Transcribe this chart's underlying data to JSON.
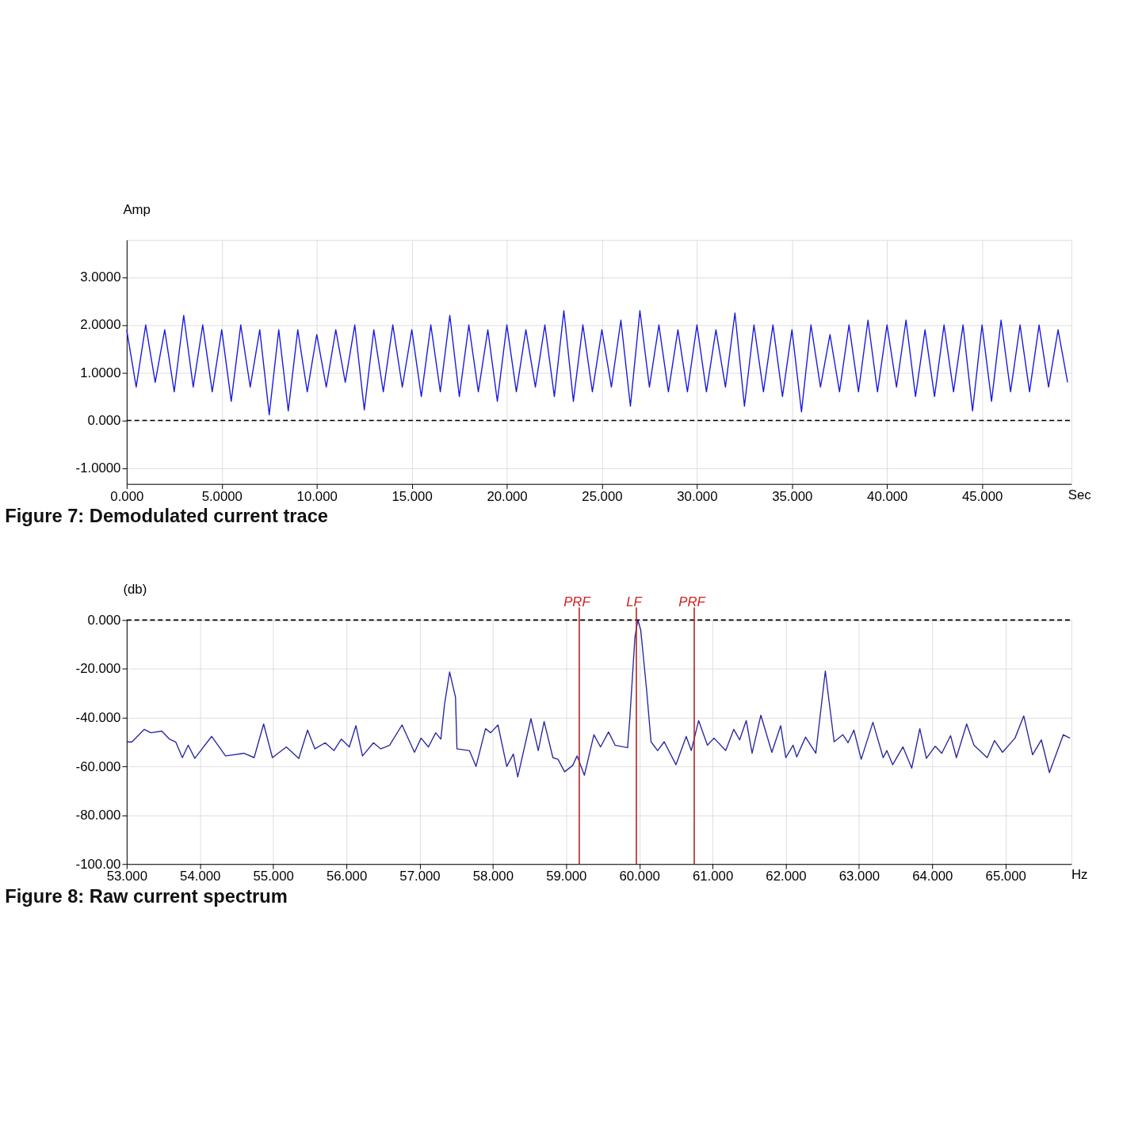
{
  "chart_data": [
    {
      "type": "line",
      "title": "Figure 7: Demodulated current trace",
      "xlabel": "Sec",
      "ylabel": "Amp",
      "grid": true,
      "marker": "none",
      "line_style": "solid",
      "xlim": [
        0,
        49.7
      ],
      "ylim": [
        -1.33,
        3.78
      ],
      "xticks": [
        {
          "value": 0,
          "label": "0.000"
        },
        {
          "value": 5,
          "label": "5.0000"
        },
        {
          "value": 10,
          "label": "10.000"
        },
        {
          "value": 15,
          "label": "15.000"
        },
        {
          "value": 20,
          "label": "20.000"
        },
        {
          "value": 25,
          "label": "25.000"
        },
        {
          "value": 30,
          "label": "30.000"
        },
        {
          "value": 35,
          "label": "35.000"
        },
        {
          "value": 40,
          "label": "40.000"
        },
        {
          "value": 45,
          "label": "45.000"
        }
      ],
      "yticks": [
        {
          "value": -1,
          "label": "-1.0000"
        },
        {
          "value": 0,
          "label": "0.000"
        },
        {
          "value": 1,
          "label": "1.0000"
        },
        {
          "value": 2,
          "label": "2.0000"
        },
        {
          "value": 3,
          "label": "3.0000"
        }
      ],
      "ref_lines": [
        {
          "axis": "y",
          "value": 0,
          "color": "#000000",
          "line_style": "dashed"
        }
      ],
      "series": [
        {
          "color": "#1a1ae0",
          "x": [
            0,
            0.5,
            1,
            1.5,
            2,
            2.5,
            3,
            3.5,
            4,
            4.5,
            5,
            5.5,
            6,
            6.5,
            7,
            7.5,
            8,
            8.5,
            9,
            9.5,
            10,
            10.5,
            11,
            11.5,
            12,
            12.5,
            13,
            13.5,
            14,
            14.5,
            15,
            15.5,
            16,
            16.5,
            17,
            17.5,
            18,
            18.5,
            19,
            19.5,
            20,
            20.5,
            21,
            21.5,
            22,
            22.5,
            23,
            23.5,
            24,
            24.5,
            25,
            25.5,
            26,
            26.5,
            27,
            27.5,
            28,
            28.5,
            29,
            29.5,
            30,
            30.5,
            31,
            31.5,
            32,
            32.5,
            33,
            33.5,
            34,
            34.5,
            35,
            35.5,
            36,
            36.5,
            37,
            37.5,
            38,
            38.5,
            39,
            39.5,
            40,
            40.5,
            41,
            41.5,
            42,
            42.5,
            43,
            43.5,
            44,
            44.5,
            45,
            45.5,
            46,
            46.5,
            47,
            47.5,
            48,
            48.5,
            49,
            49.5
          ],
          "values": [
            1.9,
            0.7,
            2.0,
            0.8,
            1.9,
            0.6,
            2.2,
            0.7,
            2.0,
            0.6,
            1.9,
            0.4,
            2.0,
            0.7,
            1.9,
            0.12,
            1.9,
            0.2,
            1.9,
            0.6,
            1.8,
            0.7,
            1.9,
            0.8,
            2.0,
            0.22,
            1.9,
            0.6,
            2.0,
            0.7,
            1.9,
            0.5,
            2.0,
            0.6,
            2.2,
            0.5,
            2.0,
            0.6,
            1.9,
            0.4,
            2.0,
            0.6,
            1.9,
            0.7,
            2.0,
            0.5,
            2.3,
            0.4,
            2.0,
            0.6,
            1.9,
            0.7,
            2.1,
            0.3,
            2.3,
            0.7,
            2.0,
            0.6,
            1.9,
            0.6,
            2.0,
            0.6,
            1.9,
            0.7,
            2.25,
            0.3,
            2.0,
            0.6,
            2.0,
            0.5,
            1.9,
            0.18,
            2.0,
            0.7,
            1.8,
            0.6,
            2.0,
            0.6,
            2.1,
            0.6,
            2.0,
            0.7,
            2.1,
            0.5,
            1.9,
            0.5,
            2.0,
            0.6,
            2.0,
            0.2,
            2.0,
            0.4,
            2.1,
            0.6,
            2.0,
            0.6,
            2.0,
            0.7,
            1.9,
            0.8
          ]
        }
      ]
    },
    {
      "type": "line",
      "title": "Figure 8: Raw current spectrum",
      "xlabel": "Hz",
      "ylabel": "(db)",
      "grid": true,
      "marker": "none",
      "line_style": "solid",
      "xlim": [
        53,
        65.9
      ],
      "ylim": [
        -100,
        0
      ],
      "xticks": [
        {
          "value": 53,
          "label": "53.000"
        },
        {
          "value": 54,
          "label": "54.000"
        },
        {
          "value": 55,
          "label": "55.000"
        },
        {
          "value": 56,
          "label": "56.000"
        },
        {
          "value": 57,
          "label": "57.000"
        },
        {
          "value": 58,
          "label": "58.000"
        },
        {
          "value": 59,
          "label": "59.000"
        },
        {
          "value": 60,
          "label": "60.000"
        },
        {
          "value": 61,
          "label": "61.000"
        },
        {
          "value": 62,
          "label": "62.000"
        },
        {
          "value": 63,
          "label": "63.000"
        },
        {
          "value": 64,
          "label": "64.000"
        },
        {
          "value": 65,
          "label": "65.000"
        }
      ],
      "yticks": [
        {
          "value": -100,
          "label": "-100.00"
        },
        {
          "value": -80,
          "label": "-80.000"
        },
        {
          "value": -60,
          "label": "-60.000"
        },
        {
          "value": -40,
          "label": "-40.000"
        },
        {
          "value": -20,
          "label": "-20.000"
        },
        {
          "value": 0,
          "label": "0.000"
        }
      ],
      "ref_lines": [
        {
          "axis": "y",
          "value": 0,
          "color": "#000000",
          "line_style": "dashed"
        },
        {
          "axis": "x",
          "value": 59.18,
          "label": "PRF",
          "color": "#b22222",
          "line_style": "solid"
        },
        {
          "axis": "x",
          "value": 59.96,
          "label": "LF",
          "color": "#b22222",
          "line_style": "solid"
        },
        {
          "axis": "x",
          "value": 60.75,
          "label": "PRF",
          "color": "#b22222",
          "line_style": "solid"
        }
      ],
      "series": [
        {
          "color": "#2a2aa0",
          "x": [
            53.0,
            53.07,
            53.24,
            53.33,
            53.48,
            53.58,
            53.67,
            53.76,
            53.84,
            53.93,
            54.16,
            54.35,
            54.6,
            54.74,
            54.87,
            54.99,
            55.18,
            55.35,
            55.47,
            55.57,
            55.71,
            55.83,
            55.93,
            56.04,
            56.13,
            56.22,
            56.37,
            56.47,
            56.59,
            56.76,
            56.93,
            57.02,
            57.12,
            57.22,
            57.29,
            57.34,
            57.41,
            57.49,
            57.51,
            57.68,
            57.77,
            57.9,
            57.97,
            58.07,
            58.19,
            58.28,
            58.34,
            58.52,
            58.62,
            58.7,
            58.82,
            58.89,
            58.98,
            59.09,
            59.15,
            59.25,
            59.38,
            59.47,
            59.58,
            59.67,
            59.84,
            59.87,
            59.94,
            59.98,
            60.02,
            60.1,
            60.16,
            60.25,
            60.34,
            60.5,
            60.64,
            60.71,
            60.81,
            60.93,
            61.02,
            61.18,
            61.29,
            61.37,
            61.46,
            61.54,
            61.66,
            61.81,
            61.93,
            62.0,
            62.1,
            62.15,
            62.27,
            62.41,
            62.54,
            62.66,
            62.78,
            62.85,
            62.93,
            63.03,
            63.19,
            63.33,
            63.38,
            63.46,
            63.6,
            63.72,
            63.83,
            63.92,
            64.04,
            64.13,
            64.25,
            64.33,
            64.47,
            64.57,
            64.75,
            64.85,
            64.96,
            65.13,
            65.25,
            65.37,
            65.49,
            65.6,
            65.79,
            65.88
          ],
          "values": [
            -49.9,
            -50,
            -44.8,
            -46.2,
            -45.5,
            -48.7,
            -50,
            -56.4,
            -51.3,
            -56.7,
            -47.7,
            -55.7,
            -54.6,
            -56.4,
            -42.6,
            -56.4,
            -52,
            -56.7,
            -45.1,
            -52.8,
            -50.3,
            -53.5,
            -48.8,
            -52,
            -43.3,
            -55.7,
            -50.3,
            -52.8,
            -51.3,
            -43,
            -54.2,
            -48.4,
            -52,
            -46.2,
            -48.8,
            -34.6,
            -21.3,
            -31.7,
            -52.8,
            -53.5,
            -60,
            -44.5,
            -46.2,
            -43,
            -60,
            -54.9,
            -64.3,
            -40.4,
            -53.5,
            -41.6,
            -56.4,
            -57.1,
            -62.2,
            -59.6,
            -55.7,
            -63.6,
            -47,
            -52,
            -45.9,
            -51.3,
            -52.3,
            -40.4,
            -7.1,
            0,
            -4.2,
            -28.8,
            -49.9,
            -53.5,
            -49.9,
            -59.3,
            -47.7,
            -53.5,
            -41.2,
            -51.3,
            -48.4,
            -53.5,
            -44.8,
            -49.1,
            -41.2,
            -54.6,
            -39,
            -54.2,
            -43.3,
            -56.4,
            -51.3,
            -56.1,
            -48,
            -54.6,
            -20.9,
            -49.9,
            -47,
            -50.3,
            -45.1,
            -57.1,
            -41.9,
            -56.4,
            -53.5,
            -59.3,
            -52,
            -60.7,
            -44.5,
            -56.7,
            -51.7,
            -54.6,
            -47.4,
            -56.4,
            -42.6,
            -51.3,
            -56.4,
            -49.4,
            -54.2,
            -48.4,
            -39.3,
            -55.2,
            -49.1,
            -62.5,
            -47,
            -48.4
          ]
        }
      ]
    }
  ]
}
